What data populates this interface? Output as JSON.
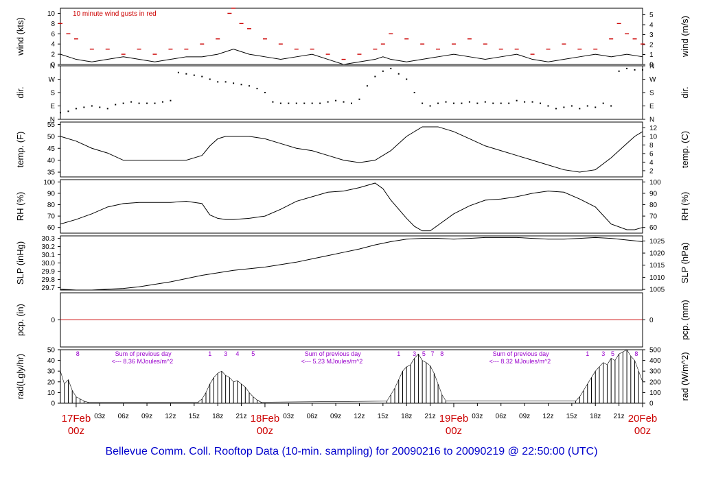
{
  "title": "Bellevue Comm. Coll. Rooftop Data (10-min. sampling) for 20090216  to  20090219 @ 22:50:00  (UTC)",
  "colors": {
    "axis": "#000000",
    "gust": "#cc0000",
    "accent_red": "#cc0000",
    "purple": "#9900cc",
    "title": "#0000cc"
  },
  "chart_data": {
    "type": "line",
    "x_ticks": [
      "03z",
      "06z",
      "09z",
      "12z",
      "15z",
      "18z",
      "21z"
    ],
    "day_labels": [
      {
        "date": "17Feb",
        "z": "00z"
      },
      {
        "date": "18Feb",
        "z": "00z"
      },
      {
        "date": "19Feb",
        "z": "00z"
      },
      {
        "date": "20Feb",
        "z": "00z"
      }
    ],
    "x_range_hours": [
      -2,
      72
    ],
    "panels": [
      {
        "name": "wind",
        "ylabel_left": "wind (kts)",
        "ylabel_right": "wind (m/s)",
        "ylim": [
          0,
          11
        ],
        "left_ticks": [
          "0",
          "2",
          "4",
          "6",
          "8",
          "10"
        ],
        "right_ticks": [
          "0",
          "1",
          "2",
          "3",
          "4",
          "5"
        ],
        "annotation": "10  minute wind gusts in red",
        "series": [
          {
            "kind": "line",
            "x": [
              -2,
              -1,
              0,
              2,
              4,
              6,
              8,
              10,
              12,
              14,
              16,
              18,
              20,
              21,
              22,
              24,
              26,
              28,
              30,
              32,
              34,
              36,
              38,
              39,
              40,
              42,
              44,
              46,
              48,
              50,
              52,
              54,
              56,
              58,
              60,
              62,
              64,
              66,
              68,
              70,
              72
            ],
            "values": [
              2,
              1.5,
              1,
              0.5,
              1,
              1.5,
              1,
              0.5,
              1,
              1.5,
              1.5,
              2,
              3,
              2.5,
              2,
              1.5,
              1,
              1.5,
              2,
              1,
              0,
              0.5,
              1,
              1.5,
              1,
              0.5,
              1,
              1.5,
              2,
              1.5,
              1,
              1.5,
              2,
              1,
              0.5,
              1,
              1.5,
              2,
              1.5,
              2,
              1.5
            ]
          },
          {
            "kind": "dashes",
            "x": [
              -2,
              -1,
              0,
              2,
              4,
              6,
              8,
              10,
              12,
              14,
              16,
              18,
              19.5,
              20,
              21,
              22,
              24,
              26,
              28,
              30,
              32,
              34,
              36,
              38,
              39,
              40,
              42,
              44,
              46,
              48,
              50,
              52,
              54,
              56,
              58,
              60,
              62,
              64,
              66,
              68,
              69,
              70,
              71,
              72
            ],
            "values": [
              8,
              6,
              5,
              3,
              3,
              2,
              3,
              2,
              3,
              3,
              4,
              5,
              10,
              11,
              8,
              7,
              5,
              4,
              3,
              3,
              2,
              1,
              2,
              3,
              4,
              6,
              5,
              4,
              3,
              4,
              5,
              4,
              3,
              3,
              2,
              3,
              4,
              3,
              3,
              5,
              8,
              6,
              5,
              4
            ]
          }
        ]
      },
      {
        "name": "dir",
        "ylabel_left": "dir.",
        "ylabel_right": "dir.",
        "ylim": [
          0,
          4
        ],
        "left_ticks": [
          "N",
          "E",
          "S",
          "W",
          "N"
        ],
        "right_ticks": [
          "N",
          "E",
          "S",
          "W",
          "N"
        ],
        "series": [
          {
            "kind": "dots",
            "x": [
              -2,
              -1,
              0,
              1,
              2,
              3,
              4,
              5,
              6,
              7,
              8,
              9,
              10,
              11,
              12,
              13,
              14,
              15,
              16,
              17,
              18,
              19,
              20,
              21,
              22,
              23,
              24,
              25,
              26,
              27,
              28,
              29,
              30,
              31,
              32,
              33,
              34,
              35,
              36,
              37,
              38,
              39,
              40,
              41,
              42,
              43,
              44,
              45,
              46,
              47,
              48,
              49,
              50,
              51,
              52,
              53,
              54,
              55,
              56,
              57,
              58,
              59,
              60,
              61,
              62,
              63,
              64,
              65,
              66,
              67,
              68,
              69,
              70,
              71,
              72
            ],
            "values": [
              0.5,
              0.6,
              0.8,
              0.9,
              1.0,
              0.9,
              0.8,
              1.1,
              1.2,
              1.3,
              1.2,
              1.2,
              1.2,
              1.3,
              1.4,
              3.5,
              3.4,
              3.3,
              3.2,
              3.0,
              2.8,
              2.8,
              2.7,
              2.6,
              2.5,
              2.3,
              2.0,
              1.3,
              1.2,
              1.2,
              1.2,
              1.2,
              1.2,
              1.2,
              1.3,
              1.4,
              1.3,
              1.2,
              1.5,
              2.5,
              3.2,
              3.6,
              3.8,
              3.4,
              3.0,
              2.0,
              1.2,
              1.0,
              1.2,
              1.3,
              1.2,
              1.2,
              1.3,
              1.2,
              1.3,
              1.2,
              1.2,
              1.2,
              1.4,
              1.3,
              1.3,
              1.2,
              1.0,
              0.8,
              0.9,
              1.0,
              0.8,
              1.0,
              0.9,
              1.2,
              1.0,
              3.6,
              3.8,
              3.7,
              3.7
            ]
          }
        ]
      },
      {
        "name": "temp",
        "ylabel_left": "temp. (F)",
        "ylabel_right": "temp. (C)",
        "ylim": [
          33,
          56
        ],
        "left_ticks": [
          "35",
          "40",
          "45",
          "50",
          "55"
        ],
        "right_ticks": [
          "2",
          "4",
          "6",
          "8",
          "10",
          "12"
        ],
        "series": [
          {
            "kind": "line",
            "x": [
              -2,
              0,
              2,
              4,
              6,
              8,
              10,
              12,
              14,
              15,
              16,
              17,
              18,
              19,
              20,
              21,
              22,
              24,
              26,
              28,
              30,
              32,
              34,
              36,
              38,
              40,
              42,
              44,
              46,
              48,
              50,
              52,
              54,
              56,
              58,
              60,
              62,
              64,
              66,
              68,
              70,
              71,
              72
            ],
            "values": [
              50,
              48,
              45,
              43,
              40,
              40,
              40,
              40,
              40,
              41,
              42,
              46,
              49,
              50,
              50,
              50,
              50,
              49,
              47,
              45,
              44,
              42,
              40,
              39,
              40,
              44,
              50,
              54,
              54,
              52,
              49,
              46,
              44,
              42,
              40,
              38,
              36,
              35,
              36,
              41,
              47,
              50,
              52
            ]
          }
        ]
      },
      {
        "name": "rh",
        "ylabel_left": "RH (%)",
        "ylabel_right": "RH (%)",
        "ylim": [
          55,
          102
        ],
        "left_ticks": [
          "60",
          "70",
          "80",
          "90",
          "100"
        ],
        "right_ticks": [
          "60",
          "70",
          "80",
          "90",
          "100"
        ],
        "series": [
          {
            "kind": "line",
            "x": [
              -2,
              0,
              2,
              4,
              6,
              8,
              10,
              12,
              14,
              16,
              17,
              18,
              19,
              20,
              22,
              24,
              26,
              28,
              30,
              32,
              34,
              36,
              38,
              39,
              40,
              42,
              43,
              44,
              45,
              46,
              48,
              50,
              52,
              54,
              56,
              58,
              60,
              62,
              64,
              66,
              68,
              70,
              71,
              72
            ],
            "values": [
              63,
              67,
              72,
              78,
              81,
              82,
              82,
              82,
              83,
              81,
              71,
              68,
              67,
              67,
              68,
              70,
              76,
              83,
              87,
              91,
              92,
              95,
              99,
              94,
              84,
              68,
              61,
              57,
              57,
              62,
              72,
              79,
              84,
              85,
              87,
              90,
              92,
              91,
              85,
              78,
              63,
              58,
              58,
              60
            ]
          }
        ]
      },
      {
        "name": "slp",
        "ylabel_left": "SLP (inHg)",
        "ylabel_right": "SLP (hPa)",
        "ylim": [
          29.67,
          30.33
        ],
        "left_ticks": [
          "29.7",
          "29.8",
          "29.9",
          "30.0",
          "30.1",
          "30.2",
          "30.3"
        ],
        "right_ticks": [
          "1005",
          "1010",
          "1015",
          "1020",
          "1025"
        ],
        "series": [
          {
            "kind": "line",
            "x": [
              -2,
              0,
              2,
              4,
              6,
              8,
              10,
              12,
              14,
              16,
              18,
              20,
              22,
              24,
              26,
              28,
              30,
              32,
              34,
              36,
              38,
              40,
              42,
              44,
              46,
              48,
              50,
              52,
              54,
              56,
              58,
              60,
              62,
              64,
              66,
              68,
              70,
              72
            ],
            "values": [
              29.68,
              29.67,
              29.67,
              29.68,
              29.69,
              29.71,
              29.74,
              29.77,
              29.81,
              29.85,
              29.88,
              29.91,
              29.93,
              29.95,
              29.98,
              30.01,
              30.05,
              30.09,
              30.13,
              30.17,
              30.22,
              30.26,
              30.29,
              30.3,
              30.3,
              30.29,
              30.3,
              30.31,
              30.31,
              30.31,
              30.3,
              30.29,
              30.29,
              30.3,
              30.31,
              30.3,
              30.28,
              30.26
            ]
          }
        ]
      },
      {
        "name": "pcp",
        "ylabel_left": "pcp. (in)",
        "ylabel_right": "pcp. (mm)",
        "ylim": [
          -1,
          1
        ],
        "left_ticks": [
          "0"
        ],
        "right_ticks": [
          "0"
        ],
        "series": [
          {
            "kind": "line",
            "x": [
              -2,
              72
            ],
            "values": [
              0,
              0
            ]
          }
        ]
      },
      {
        "name": "rad",
        "ylabel_left": "rad(Lgly/hr)",
        "ylabel_right": "rad (W/m^2)",
        "ylim": [
          0,
          50
        ],
        "left_ticks": [
          "0",
          "10",
          "20",
          "30",
          "40",
          "50"
        ],
        "right_ticks": [
          "0",
          "100",
          "200",
          "300",
          "400",
          "500"
        ],
        "hour_marks": [
          {
            "label": "8",
            "x": 0.2
          },
          {
            "label": "1",
            "x": 17
          },
          {
            "label": "3",
            "x": 19
          },
          {
            "label": "4",
            "x": 20.5
          },
          {
            "label": "5",
            "x": 22.5
          },
          {
            "label": "1",
            "x": 41
          },
          {
            "label": "3",
            "x": 43
          },
          {
            "label": "5",
            "x": 44.2
          },
          {
            "label": "7",
            "x": 45.3
          },
          {
            "label": "8",
            "x": 46.5
          },
          {
            "label": "1",
            "x": 65
          },
          {
            "label": "3",
            "x": 67
          },
          {
            "label": "5",
            "x": 68.2
          },
          {
            "label": "8",
            "x": 71.2
          }
        ],
        "day_sums": [
          {
            "heading": "Sum of previous day",
            "text": "<--- 8.36 MJoules/m^2",
            "x": 3.2
          },
          {
            "heading": "Sum of previous day",
            "text": "<--- 5.23 MJoules/m^2",
            "x": 27.3
          },
          {
            "heading": "Sum of previous day",
            "text": "<--- 8.32 MJoules/m^2",
            "x": 51.2
          }
        ],
        "series": [
          {
            "kind": "spikes",
            "x": [
              -2,
              -1.5,
              -1,
              -0.5,
              0,
              0.5,
              1,
              1.5,
              15.5,
              16,
              16.5,
              17,
              17.5,
              18,
              18.5,
              19,
              19.5,
              20,
              20.5,
              21,
              21.5,
              22,
              22.5,
              23,
              23.5,
              39.5,
              40,
              40.5,
              41,
              41.5,
              42,
              42.5,
              43,
              43.5,
              44,
              44.5,
              45,
              45.5,
              46,
              46.5,
              47,
              63.5,
              64,
              64.5,
              65,
              65.5,
              66,
              66.5,
              67,
              67.5,
              68,
              68.5,
              69,
              69.5,
              70,
              70.5,
              71,
              71.5,
              72
            ],
            "values": [
              30,
              18,
              22,
              12,
              6,
              4,
              2,
              1,
              1,
              4,
              10,
              18,
              24,
              28,
              30,
              26,
              24,
              20,
              21,
              18,
              15,
              10,
              6,
              3,
              1,
              2,
              8,
              14,
              22,
              30,
              34,
              36,
              42,
              46,
              40,
              38,
              35,
              28,
              18,
              8,
              2,
              2,
              6,
              12,
              18,
              24,
              30,
              34,
              38,
              36,
              42,
              40,
              46,
              48,
              50,
              44,
              40,
              30,
              20
            ]
          }
        ]
      }
    ]
  }
}
